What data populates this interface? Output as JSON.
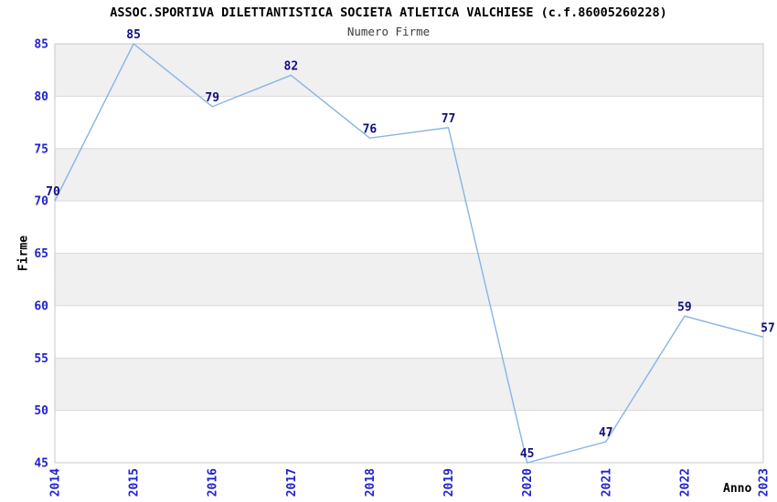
{
  "chart_data": {
    "type": "line",
    "title": "ASSOC.SPORTIVA DILETTANTISTICA SOCIETA ATLETICA VALCHIESE (c.f.86005260228)",
    "subtitle": "Numero Firme",
    "xlabel": "Anno",
    "ylabel": "Firme",
    "categories": [
      "2014",
      "2015",
      "2016",
      "2017",
      "2018",
      "2019",
      "2020",
      "2021",
      "2022",
      "2023"
    ],
    "values": [
      70,
      85,
      79,
      82,
      76,
      77,
      45,
      47,
      59,
      57
    ],
    "ylim": [
      45,
      85
    ],
    "ytick_step": 5,
    "ytick_labels": [
      "45",
      "50",
      "55",
      "60",
      "65",
      "70",
      "75",
      "80",
      "85"
    ],
    "point_labels": [
      "70",
      "85",
      "79",
      "82",
      "76",
      "77",
      "45",
      "47",
      "59",
      "57"
    ],
    "grid": "horizontal-bands-alternating",
    "legend": "none",
    "colors": {
      "line": "#86b4e6",
      "tick_label": "#2222cc",
      "point_label": "#10107e",
      "band_gray": "#f0f0f0",
      "band_white": "#ffffff",
      "gridline": "#d9d9d9",
      "plot_border": "#c9c9c9",
      "title": "#000000",
      "subtitle": "#3c3c3c",
      "axis_title": "#000000"
    }
  }
}
